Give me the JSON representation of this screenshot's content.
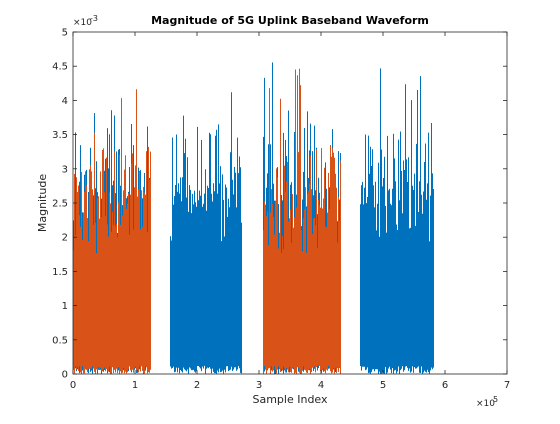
{
  "chart_data": {
    "type": "bar",
    "title": "Magnitude of 5G Uplink Baseband Waveform",
    "xlabel": "Sample Index",
    "ylabel": "Magnitude",
    "x_multiplier": "×10",
    "x_exponent": "5",
    "y_multiplier": "×10",
    "y_exponent": "-3",
    "xlim": [
      0,
      7
    ],
    "ylim": [
      0,
      5
    ],
    "xticks": [
      "0",
      "1",
      "2",
      "3",
      "4",
      "5",
      "6",
      "7"
    ],
    "yticks": [
      "0",
      "0.5",
      "1",
      "1.5",
      "2",
      "2.5",
      "3",
      "3.5",
      "4",
      "4.5",
      "5"
    ],
    "grid": false,
    "box": true,
    "series": [
      {
        "color": "#0072BD",
        "bursts": [
          [
            0.0,
            1.25
          ],
          [
            1.55,
            2.72
          ],
          [
            3.05,
            4.32
          ],
          [
            4.62,
            5.82
          ]
        ],
        "typical_peak": 3.5,
        "max_peak": 4.6
      },
      {
        "color": "#D95319",
        "bursts": [
          [
            0.0,
            1.25
          ],
          [
            3.05,
            4.32
          ]
        ],
        "typical_peak": 3.2,
        "max_peak": 4.8
      }
    ]
  }
}
